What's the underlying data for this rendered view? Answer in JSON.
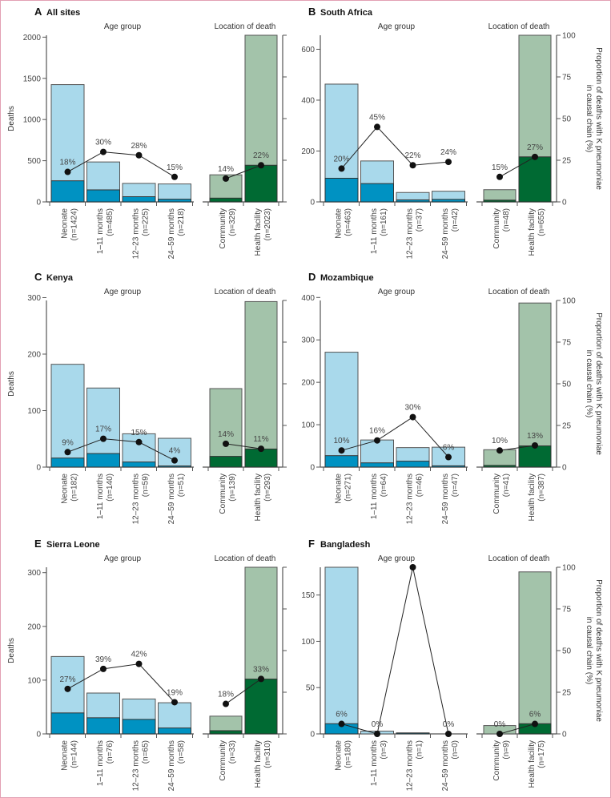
{
  "chart_data": {
    "type": "bar",
    "group_titles": {
      "age": "Age group",
      "location": "Location of death"
    },
    "ylabel": "Deaths",
    "y2label": [
      "Proportion of deaths with K pneumoniae",
      "in causal chain (%)"
    ],
    "y2_ticks": [
      0,
      25,
      50,
      75,
      100
    ],
    "colors": {
      "age_total": "#a9d9eb",
      "age_kp": "#0092c2",
      "loc_total": "#a3c3aa",
      "loc_kp": "#006a33",
      "outline": "#555555",
      "line": "#222222"
    },
    "panels": [
      {
        "letter": "A",
        "title": "All sites",
        "ymax": 2023,
        "yticks": [
          0,
          500,
          1000,
          1500,
          2000
        ],
        "show_y2_labels": false,
        "age": [
          {
            "label": "Neonate",
            "n": "(n=1424)",
            "total": 1424,
            "kp": 256,
            "pct": 18,
            "pct_label": "18%"
          },
          {
            "label": "1–11 months",
            "n": "(n=485)",
            "total": 485,
            "kp": 146,
            "pct": 30,
            "pct_label": "30%"
          },
          {
            "label": "12–23 months",
            "n": "(n=225)",
            "total": 225,
            "kp": 63,
            "pct": 28,
            "pct_label": "28%"
          },
          {
            "label": "24–59 months",
            "n": "(n=218)",
            "total": 218,
            "kp": 33,
            "pct": 15,
            "pct_label": "15%"
          }
        ],
        "location": [
          {
            "label": "Community",
            "n": "(n=329)",
            "total": 329,
            "kp": 46,
            "pct": 14,
            "pct_label": "14%"
          },
          {
            "label": "Health facility",
            "n": "(n=2023)",
            "total": 2023,
            "kp": 445,
            "pct": 22,
            "pct_label": "22%"
          }
        ]
      },
      {
        "letter": "B",
        "title": "South Africa",
        "ymax": 655,
        "yticks": [
          0,
          200,
          400,
          600
        ],
        "show_y2_labels": true,
        "age": [
          {
            "label": "Neonate",
            "n": "(n=463)",
            "total": 463,
            "kp": 93,
            "pct": 20,
            "pct_label": "20%"
          },
          {
            "label": "1–11 months",
            "n": "(n=161)",
            "total": 161,
            "kp": 72,
            "pct": 45,
            "pct_label": "45%"
          },
          {
            "label": "12–23 months",
            "n": "(n=37)",
            "total": 37,
            "kp": 8,
            "pct": 22,
            "pct_label": "22%"
          },
          {
            "label": "24–59 months",
            "n": "(n=42)",
            "total": 42,
            "kp": 10,
            "pct": 24,
            "pct_label": "24%"
          }
        ],
        "location": [
          {
            "label": "Community",
            "n": "(n=48)",
            "total": 48,
            "kp": 7,
            "pct": 15,
            "pct_label": "15%"
          },
          {
            "label": "Health facility",
            "n": "(n=655)",
            "total": 655,
            "kp": 177,
            "pct": 27,
            "pct_label": "27%"
          }
        ]
      },
      {
        "letter": "C",
        "title": "Kenya",
        "ymax": 295,
        "yticks": [
          0,
          100,
          200,
          300
        ],
        "show_y2_labels": false,
        "age": [
          {
            "label": "Neonate",
            "n": "(n=182)",
            "total": 182,
            "kp": 16,
            "pct": 9,
            "pct_label": "9%"
          },
          {
            "label": "1–11 months",
            "n": "(n=140)",
            "total": 140,
            "kp": 24,
            "pct": 17,
            "pct_label": "17%"
          },
          {
            "label": "12–23 months",
            "n": "(n=59)",
            "total": 59,
            "kp": 9,
            "pct": 15,
            "pct_label": "15%"
          },
          {
            "label": "24–59 months",
            "n": "(n=51)",
            "total": 51,
            "kp": 2,
            "pct": 4,
            "pct_label": "4%"
          }
        ],
        "location": [
          {
            "label": "Community",
            "n": "(n=139)",
            "total": 139,
            "kp": 19,
            "pct": 14,
            "pct_label": "14%"
          },
          {
            "label": "Health facility",
            "n": "(n=293)",
            "total": 293,
            "kp": 32,
            "pct": 11,
            "pct_label": "11%"
          }
        ]
      },
      {
        "letter": "D",
        "title": "Mozambique",
        "ymax": 393,
        "yticks": [
          0,
          100,
          200,
          300,
          400
        ],
        "show_y2_labels": true,
        "age": [
          {
            "label": "Neonate",
            "n": "(n=271)",
            "total": 271,
            "kp": 27,
            "pct": 10,
            "pct_label": "10%"
          },
          {
            "label": "1–11 months",
            "n": "(n=64)",
            "total": 64,
            "kp": 10,
            "pct": 16,
            "pct_label": "16%"
          },
          {
            "label": "12–23 months",
            "n": "(n=46)",
            "total": 46,
            "kp": 14,
            "pct": 30,
            "pct_label": "30%"
          },
          {
            "label": "24–59 months",
            "n": "(n=47)",
            "total": 47,
            "kp": 3,
            "pct": 6,
            "pct_label": "6%"
          }
        ],
        "location": [
          {
            "label": "Community",
            "n": "(n=41)",
            "total": 41,
            "kp": 4,
            "pct": 10,
            "pct_label": "10%"
          },
          {
            "label": "Health facility",
            "n": "(n=387)",
            "total": 387,
            "kp": 50,
            "pct": 13,
            "pct_label": "13%"
          }
        ]
      },
      {
        "letter": "E",
        "title": "Sierra Leone",
        "ymax": 310,
        "yticks": [
          0,
          100,
          200,
          300
        ],
        "show_y2_labels": false,
        "age": [
          {
            "label": "Neonate",
            "n": "(n=144)",
            "total": 144,
            "kp": 39,
            "pct": 27,
            "pct_label": "27%"
          },
          {
            "label": "1–11 months",
            "n": "(n=76)",
            "total": 76,
            "kp": 30,
            "pct": 39,
            "pct_label": "39%"
          },
          {
            "label": "12–23 months",
            "n": "(n=65)",
            "total": 65,
            "kp": 27,
            "pct": 42,
            "pct_label": "42%"
          },
          {
            "label": "24–59 months",
            "n": "(n=58)",
            "total": 58,
            "kp": 11,
            "pct": 19,
            "pct_label": "19%"
          }
        ],
        "location": [
          {
            "label": "Community",
            "n": "(n=33)",
            "total": 33,
            "kp": 6,
            "pct": 18,
            "pct_label": "18%"
          },
          {
            "label": "Health facility",
            "n": "(n=310)",
            "total": 310,
            "kp": 102,
            "pct": 33,
            "pct_label": "33%"
          }
        ]
      },
      {
        "letter": "F",
        "title": "Bangladesh",
        "ymax": 180,
        "yticks": [
          0,
          50,
          100,
          150
        ],
        "show_y2_labels": true,
        "age": [
          {
            "label": "Neonate",
            "n": "(n=180)",
            "total": 180,
            "kp": 11,
            "pct": 6,
            "pct_label": "6%"
          },
          {
            "label": "1–11 months",
            "n": "(n=3)",
            "total": 3,
            "kp": 0,
            "pct": 0,
            "pct_label": "0%"
          },
          {
            "label": "12–23 months",
            "n": "(n=1)",
            "total": 1,
            "kp": 1,
            "pct": 100,
            "pct_label": null
          },
          {
            "label": "24–59 months",
            "n": "(n=0)",
            "total": 0,
            "kp": 0,
            "pct": 0,
            "pct_label": "0%"
          }
        ],
        "location": [
          {
            "label": "Community",
            "n": "(n=9)",
            "total": 9,
            "kp": 0,
            "pct": 0,
            "pct_label": "0%"
          },
          {
            "label": "Health facility",
            "n": "(n=175)",
            "total": 175,
            "kp": 11,
            "pct": 6,
            "pct_label": "6%"
          }
        ]
      }
    ]
  }
}
